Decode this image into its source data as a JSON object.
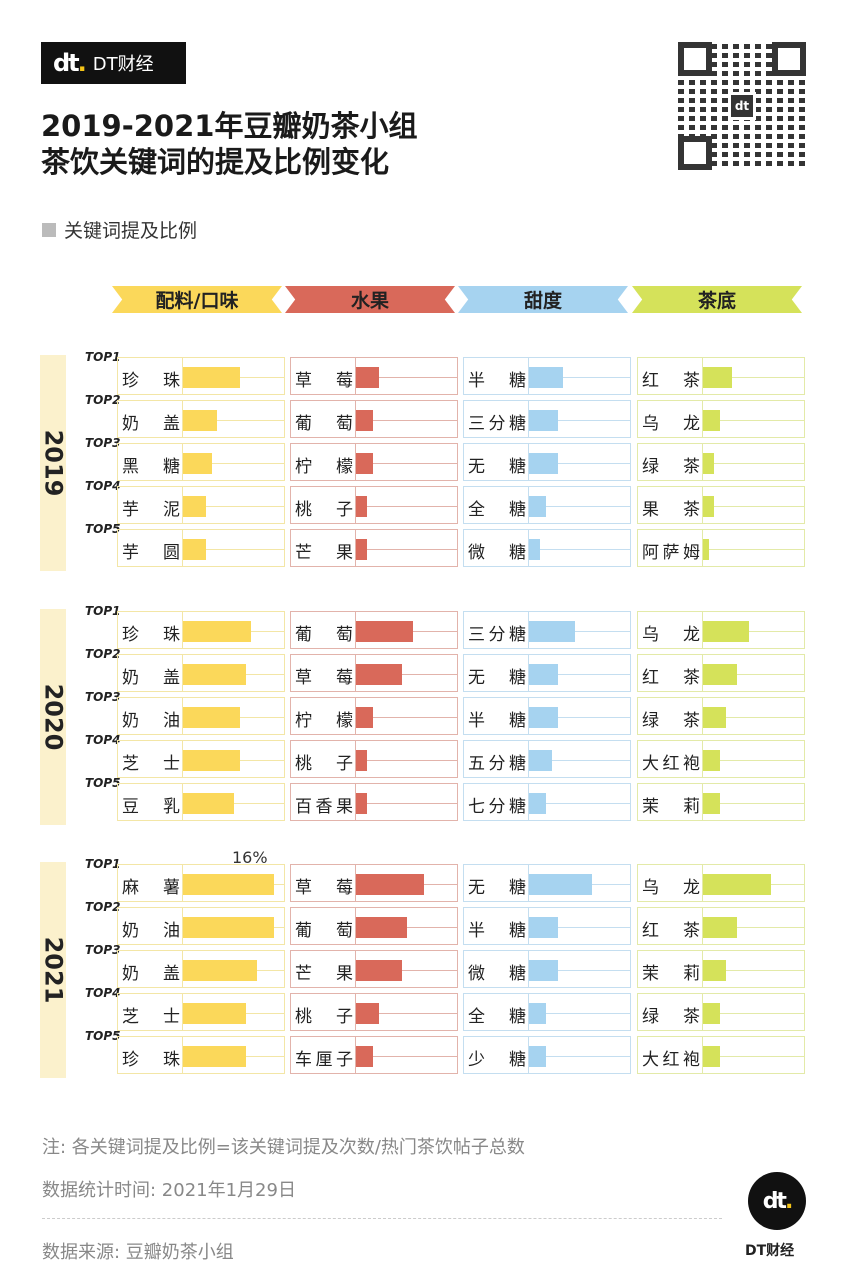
{
  "brand": {
    "logo_mark": "dt",
    "name": "DT财经"
  },
  "title": [
    "2019-2021年豆瓣奶茶小组",
    "茶饮关键词的提及比例变化"
  ],
  "legend": "关键词提及比例",
  "chart_data": {
    "type": "bar",
    "title": "2019-2021年豆瓣奶茶小组茶饮关键词的提及比例变化",
    "unit": "%",
    "categories": [
      "配料/口味",
      "水果",
      "甜度",
      "茶底"
    ],
    "colors": [
      "#FBD85A",
      "#D9695A",
      "#A6D3F0",
      "#D5E25A"
    ],
    "row_labels": [
      "TOP1",
      "TOP2",
      "TOP3",
      "TOP4",
      "TOP5"
    ],
    "annotation": "16%",
    "years": [
      {
        "year": "2019",
        "groups": [
          [
            {
              "k": "珍珠",
              "v": 10
            },
            {
              "k": "奶盖",
              "v": 6
            },
            {
              "k": "黑糖",
              "v": 5
            },
            {
              "k": "芋泥",
              "v": 4
            },
            {
              "k": "芋圆",
              "v": 4
            }
          ],
          [
            {
              "k": "草莓",
              "v": 4
            },
            {
              "k": "葡萄",
              "v": 3
            },
            {
              "k": "柠檬",
              "v": 3
            },
            {
              "k": "桃子",
              "v": 2
            },
            {
              "k": "芒果",
              "v": 2
            }
          ],
          [
            {
              "k": "半糖",
              "v": 6
            },
            {
              "k": "三分糖",
              "v": 5
            },
            {
              "k": "无糖",
              "v": 5
            },
            {
              "k": "全糖",
              "v": 3
            },
            {
              "k": "微糖",
              "v": 2
            }
          ],
          [
            {
              "k": "红茶",
              "v": 5
            },
            {
              "k": "乌龙",
              "v": 3
            },
            {
              "k": "绿茶",
              "v": 2
            },
            {
              "k": "果茶",
              "v": 2
            },
            {
              "k": "阿萨姆",
              "v": 1
            }
          ]
        ]
      },
      {
        "year": "2020",
        "groups": [
          [
            {
              "k": "珍珠",
              "v": 12
            },
            {
              "k": "奶盖",
              "v": 11
            },
            {
              "k": "奶油",
              "v": 10
            },
            {
              "k": "芝士",
              "v": 10
            },
            {
              "k": "豆乳",
              "v": 9
            }
          ],
          [
            {
              "k": "葡萄",
              "v": 10
            },
            {
              "k": "草莓",
              "v": 8
            },
            {
              "k": "柠檬",
              "v": 3
            },
            {
              "k": "桃子",
              "v": 2
            },
            {
              "k": "百香果",
              "v": 2
            }
          ],
          [
            {
              "k": "三分糖",
              "v": 8
            },
            {
              "k": "无糖",
              "v": 5
            },
            {
              "k": "半糖",
              "v": 5
            },
            {
              "k": "五分糖",
              "v": 4
            },
            {
              "k": "七分糖",
              "v": 3
            }
          ],
          [
            {
              "k": "乌龙",
              "v": 8
            },
            {
              "k": "红茶",
              "v": 6
            },
            {
              "k": "绿茶",
              "v": 4
            },
            {
              "k": "大红袍",
              "v": 3
            },
            {
              "k": "茉莉",
              "v": 3
            }
          ]
        ]
      },
      {
        "year": "2021",
        "groups": [
          [
            {
              "k": "麻薯",
              "v": 16
            },
            {
              "k": "奶油",
              "v": 16
            },
            {
              "k": "奶盖",
              "v": 13
            },
            {
              "k": "芝士",
              "v": 11
            },
            {
              "k": "珍珠",
              "v": 11
            }
          ],
          [
            {
              "k": "草莓",
              "v": 12
            },
            {
              "k": "葡萄",
              "v": 9
            },
            {
              "k": "芒果",
              "v": 8
            },
            {
              "k": "桃子",
              "v": 4
            },
            {
              "k": "车厘子",
              "v": 3
            }
          ],
          [
            {
              "k": "无糖",
              "v": 11
            },
            {
              "k": "半糖",
              "v": 5
            },
            {
              "k": "微糖",
              "v": 5
            },
            {
              "k": "全糖",
              "v": 3
            },
            {
              "k": "少糖",
              "v": 3
            }
          ],
          [
            {
              "k": "乌龙",
              "v": 12
            },
            {
              "k": "红茶",
              "v": 6
            },
            {
              "k": "茉莉",
              "v": 4
            },
            {
              "k": "绿茶",
              "v": 3
            },
            {
              "k": "大红袍",
              "v": 3
            }
          ]
        ]
      }
    ]
  },
  "footer": {
    "note": "注: 各关键词提及比例=该关键词提及次数/热门茶饮帖子总数",
    "date": "数据统计时间: 2021年1月29日",
    "source": "数据来源: 豆瓣奶茶小组"
  }
}
